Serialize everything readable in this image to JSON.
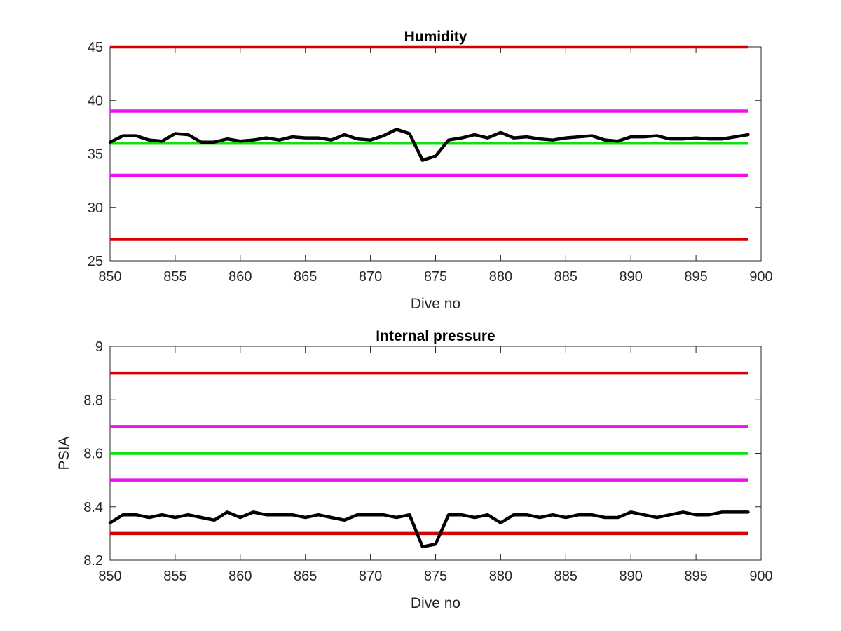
{
  "chart_data": [
    {
      "type": "line",
      "title": "Humidity",
      "xlabel": "Dive no",
      "ylabel": "",
      "xlim": [
        850,
        900
      ],
      "ylim": [
        25,
        45
      ],
      "xticks": [
        "850",
        "855",
        "860",
        "865",
        "870",
        "875",
        "880",
        "885",
        "890",
        "895",
        "900"
      ],
      "yticks": [
        "25",
        "30",
        "35",
        "40",
        "45"
      ],
      "grid": false,
      "reference_lines": [
        {
          "y": 45,
          "color": "#d40000",
          "x": [
            850,
            899
          ]
        },
        {
          "y": 39,
          "color": "#ee10ee",
          "x": [
            850,
            899
          ]
        },
        {
          "y": 36,
          "color": "#10e010",
          "x": [
            850,
            899
          ]
        },
        {
          "y": 33,
          "color": "#ee10ee",
          "x": [
            850,
            899
          ]
        },
        {
          "y": 27,
          "color": "#d40000",
          "x": [
            850,
            899
          ]
        }
      ],
      "series": [
        {
          "color": "#000000",
          "x": [
            850,
            851,
            852,
            853,
            854,
            855,
            856,
            857,
            858,
            859,
            860,
            861,
            862,
            863,
            864,
            865,
            866,
            867,
            868,
            869,
            870,
            871,
            872,
            873,
            874,
            875,
            876,
            877,
            878,
            879,
            880,
            881,
            882,
            883,
            884,
            885,
            886,
            887,
            888,
            889,
            890,
            891,
            892,
            893,
            894,
            895,
            896,
            897,
            898,
            899
          ],
          "values": [
            36.1,
            36.7,
            36.7,
            36.3,
            36.2,
            36.9,
            36.8,
            36.1,
            36.1,
            36.4,
            36.2,
            36.3,
            36.5,
            36.3,
            36.6,
            36.5,
            36.5,
            36.3,
            36.8,
            36.4,
            36.3,
            36.7,
            37.3,
            36.9,
            34.4,
            34.8,
            36.3,
            36.5,
            36.8,
            36.5,
            37.0,
            36.5,
            36.6,
            36.4,
            36.3,
            36.5,
            36.6,
            36.7,
            36.3,
            36.2,
            36.6,
            36.6,
            36.7,
            36.4,
            36.4,
            36.5,
            36.4,
            36.4,
            36.6,
            36.8
          ]
        }
      ]
    },
    {
      "type": "line",
      "title": "Internal pressure",
      "xlabel": "Dive no",
      "ylabel": "PSIA",
      "xlim": [
        850,
        900
      ],
      "ylim": [
        8.2,
        9
      ],
      "xticks": [
        "850",
        "855",
        "860",
        "865",
        "870",
        "875",
        "880",
        "885",
        "890",
        "895",
        "900"
      ],
      "yticks": [
        "8.2",
        "8.4",
        "8.6",
        "8.8",
        "9"
      ],
      "grid": false,
      "reference_lines": [
        {
          "y": 8.9,
          "color": "#d40000",
          "x": [
            850,
            899
          ]
        },
        {
          "y": 8.7,
          "color": "#ee10ee",
          "x": [
            850,
            899
          ]
        },
        {
          "y": 8.6,
          "color": "#10e010",
          "x": [
            850,
            899
          ]
        },
        {
          "y": 8.5,
          "color": "#ee10ee",
          "x": [
            850,
            899
          ]
        },
        {
          "y": 8.3,
          "color": "#d40000",
          "x": [
            850,
            899
          ]
        }
      ],
      "series": [
        {
          "color": "#000000",
          "x": [
            850,
            851,
            852,
            853,
            854,
            855,
            856,
            857,
            858,
            859,
            860,
            861,
            862,
            863,
            864,
            865,
            866,
            867,
            868,
            869,
            870,
            871,
            872,
            873,
            874,
            875,
            876,
            877,
            878,
            879,
            880,
            881,
            882,
            883,
            884,
            885,
            886,
            887,
            888,
            889,
            890,
            891,
            892,
            893,
            894,
            895,
            896,
            897,
            898,
            899
          ],
          "values": [
            8.34,
            8.37,
            8.37,
            8.36,
            8.37,
            8.36,
            8.37,
            8.36,
            8.35,
            8.38,
            8.36,
            8.38,
            8.37,
            8.37,
            8.37,
            8.36,
            8.37,
            8.36,
            8.35,
            8.37,
            8.37,
            8.37,
            8.36,
            8.37,
            8.25,
            8.26,
            8.37,
            8.37,
            8.36,
            8.37,
            8.34,
            8.37,
            8.37,
            8.36,
            8.37,
            8.36,
            8.37,
            8.37,
            8.36,
            8.36,
            8.38,
            8.37,
            8.36,
            8.37,
            8.38,
            8.37,
            8.37,
            8.38,
            8.38,
            8.38
          ]
        }
      ]
    }
  ]
}
